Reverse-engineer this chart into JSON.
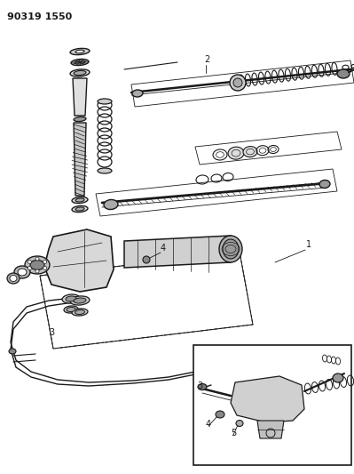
{
  "header_text": "90319 1550",
  "bg_color": "#ffffff",
  "dc": "#1a1a1a",
  "fig_width": 3.99,
  "fig_height": 5.33,
  "dpi": 100
}
